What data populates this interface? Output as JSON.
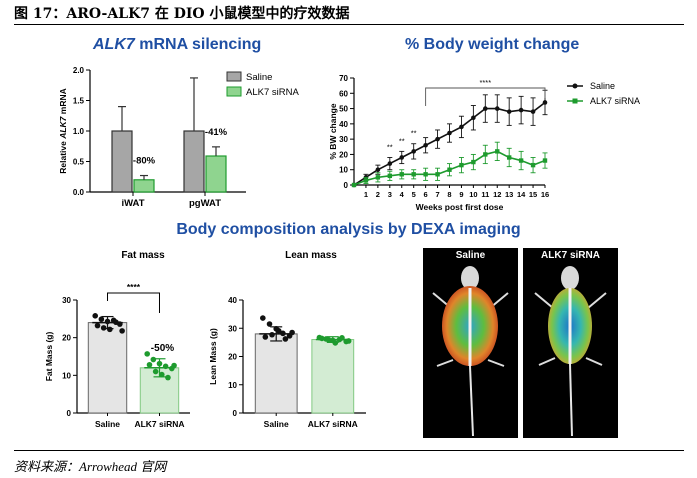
{
  "figure": {
    "title": "图 17：ARO-ALK7 在 DIO 小鼠模型中的疗效数据",
    "source": "资料来源：Arrowhead 官网",
    "composition_title": "Body composition analysis by DEXA imaging"
  },
  "colors": {
    "saline": "#a6a6a6",
    "sirna": "#8fd48f",
    "sirna_line": "#1e9b2e",
    "title": "#1f4fa3"
  },
  "chart_data": [
    {
      "id": "mrna",
      "type": "bar",
      "title_italic": "ALK7",
      "title_rest": " mRNA silencing",
      "ylabel_italic": "ALK7",
      "ylabel_pre": "Relative ",
      "ylabel_post": " mRNA",
      "categories": [
        "iWAT",
        "pgWAT"
      ],
      "series": [
        {
          "name": "Saline",
          "values": [
            1.0,
            1.0
          ],
          "error_upper": [
            1.4,
            1.87
          ]
        },
        {
          "name": "ALK7 siRNA",
          "values": [
            0.2,
            0.59
          ],
          "error_upper": [
            0.27,
            0.74
          ]
        }
      ],
      "annotations": [
        "-80%",
        "-41%"
      ],
      "yticks": [
        "0.0",
        "0.5",
        "1.0",
        "1.5",
        "2.0"
      ],
      "ylim": [
        0,
        2.0
      ]
    },
    {
      "id": "bw",
      "type": "line",
      "title": "% Body weight change",
      "xlabel": "Weeks post first dose",
      "ylabel": "% BW change",
      "x": [
        0,
        1,
        2,
        3,
        4,
        5,
        6,
        7,
        8,
        9,
        10,
        11,
        12,
        13,
        14,
        15,
        16
      ],
      "xticks": [
        "1",
        "2",
        "3",
        "4",
        "5",
        "6",
        "7",
        "8",
        "9",
        "10",
        "11",
        "12",
        "13",
        "14",
        "15",
        "16"
      ],
      "yticks": [
        "0",
        "10",
        "20",
        "30",
        "40",
        "50",
        "60",
        "70"
      ],
      "ylim": [
        0,
        70
      ],
      "series": [
        {
          "name": "Saline",
          "values": [
            0,
            5,
            10,
            14,
            18,
            22,
            26,
            30,
            34,
            38,
            44,
            50,
            50,
            48,
            49,
            48,
            54
          ],
          "error": [
            0,
            2,
            3,
            4,
            4,
            5,
            5,
            6,
            6,
            7,
            8,
            9,
            9,
            9,
            9,
            9,
            8
          ]
        },
        {
          "name": "ALK7 siRNA",
          "values": [
            0,
            3,
            5,
            6,
            7,
            7,
            7,
            7,
            10,
            13,
            15,
            20,
            22,
            18,
            16,
            13,
            16
          ],
          "error": [
            0,
            2,
            3,
            3,
            3,
            3,
            4,
            4,
            4,
            5,
            5,
            6,
            6,
            6,
            6,
            5,
            5
          ]
        }
      ],
      "annotations": [
        {
          "text": "**",
          "x": 3
        },
        {
          "text": "**",
          "x": 4
        },
        {
          "text": "**",
          "x": 5
        },
        {
          "text": "****",
          "x": 11
        }
      ],
      "legend": "top-right"
    },
    {
      "id": "fat",
      "type": "bar",
      "title": "Fat mass",
      "ylabel": "Fat Mass (g)",
      "categories": [
        "Saline",
        "ALK7 siRNA"
      ],
      "values": [
        24,
        12
      ],
      "error": [
        1.6,
        2.4
      ],
      "points": [
        [
          25.8,
          24.9,
          24.3,
          24.6,
          23.6,
          23.2,
          22.6,
          22.2,
          24.1,
          21.8
        ],
        [
          15.7,
          14.2,
          13.1,
          12.4,
          11.8,
          12.8,
          11.0,
          10.2,
          9.4,
          12.6
        ]
      ],
      "annotations": [
        "****",
        "-50%"
      ],
      "yticks": [
        "0",
        "10",
        "20",
        "30"
      ],
      "ylim": [
        0,
        30
      ]
    },
    {
      "id": "lean",
      "type": "bar",
      "title": "Lean mass",
      "ylabel": "Lean Mass (g)",
      "categories": [
        "Saline",
        "ALK7 siRNA"
      ],
      "values": [
        28,
        26
      ],
      "error": [
        2.5,
        1.0
      ],
      "points": [
        [
          33.6,
          31.5,
          29.8,
          28.2,
          27.3,
          26.9,
          27.7,
          29.1,
          26.2,
          28.5
        ],
        [
          26.7,
          26.2,
          25.7,
          26.0,
          25.3,
          26.4,
          25.9,
          24.8,
          26.6,
          25.5
        ]
      ],
      "yticks": [
        "0",
        "10",
        "20",
        "30",
        "40"
      ],
      "ylim": [
        0,
        40
      ]
    }
  ],
  "dexa": {
    "labels": [
      "Saline",
      "ALK7 siRNA"
    ]
  }
}
